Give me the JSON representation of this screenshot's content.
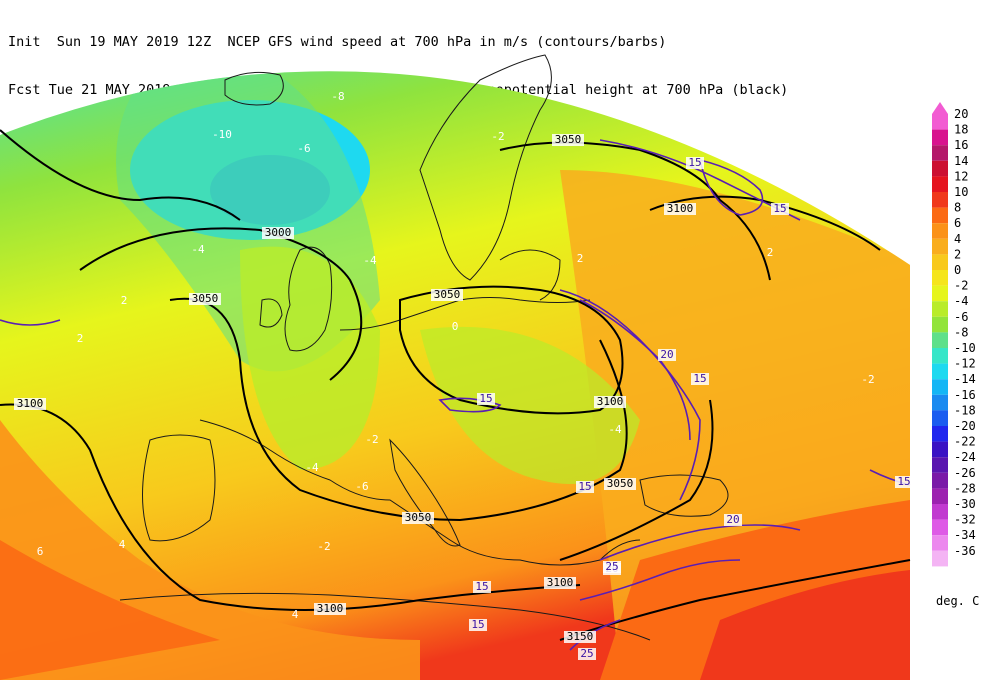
{
  "header": {
    "line1": "Init  Sun 19 MAY 2019 12Z  NCEP GFS wind speed at 700 hPa in m/s (contours/barbs)",
    "line2": "Fcst Tue 21 MAY 2019 06Z  temperature (shaded/dotted) and geopotential height at 700 hPa (black)"
  },
  "legend": {
    "units": "deg. C",
    "levels": [
      {
        "label": "20",
        "color": "#f25bd2"
      },
      {
        "label": "18",
        "color": "#d8138e"
      },
      {
        "label": "16",
        "color": "#b4186a"
      },
      {
        "label": "14",
        "color": "#cc1032"
      },
      {
        "label": "12",
        "color": "#e5141f"
      },
      {
        "label": "10",
        "color": "#f0381b"
      },
      {
        "label": "8",
        "color": "#fb6a14"
      },
      {
        "label": "6",
        "color": "#fb9219"
      },
      {
        "label": "4",
        "color": "#f9ad1d"
      },
      {
        "label": "2",
        "color": "#f8c91c"
      },
      {
        "label": "0",
        "color": "#f5e51b"
      },
      {
        "label": "-2",
        "color": "#e6f51c"
      },
      {
        "label": "-4",
        "color": "#b9ec2a"
      },
      {
        "label": "-6",
        "color": "#92e43b"
      },
      {
        "label": "-8",
        "color": "#5ee08a"
      },
      {
        "label": "-10",
        "color": "#36e6c8"
      },
      {
        "label": "-12",
        "color": "#1ed9f0"
      },
      {
        "label": "-14",
        "color": "#14b6f5"
      },
      {
        "label": "-16",
        "color": "#1a8af0"
      },
      {
        "label": "-18",
        "color": "#1b5df0"
      },
      {
        "label": "-20",
        "color": "#2127ee"
      },
      {
        "label": "-22",
        "color": "#3a13c4"
      },
      {
        "label": "-24",
        "color": "#5a16b0"
      },
      {
        "label": "-26",
        "color": "#7a1aa8"
      },
      {
        "label": "-28",
        "color": "#9c22b0"
      },
      {
        "label": "-30",
        "color": "#c13ad0"
      },
      {
        "label": "-32",
        "color": "#de5ae6"
      },
      {
        "label": "-34",
        "color": "#ec88ee"
      },
      {
        "label": "-36",
        "color": "#f4b4f4"
      }
    ]
  },
  "map": {
    "height_contours": [
      "3050",
      "3050",
      "3050",
      "3050",
      "3100",
      "3100",
      "3100",
      "3100",
      "3100",
      "3150",
      "3050",
      "3000"
    ],
    "wind_labels": [
      "15",
      "15",
      "15",
      "15",
      "15",
      "15",
      "20",
      "20",
      "20",
      "25",
      "25",
      "15",
      "15"
    ],
    "temp_labels": [
      "-10",
      "-8",
      "-8",
      "-6",
      "-4",
      "-4",
      "-4",
      "-2",
      "-2",
      "-2",
      "0",
      "2",
      "2",
      "2",
      "4",
      "4",
      "6",
      "-6",
      "-10",
      "-2",
      "-4",
      "2"
    ],
    "colors": {
      "height_line": "#000000",
      "wind_contour": "#5a1eb4",
      "coast": "#1a1a1a"
    }
  }
}
